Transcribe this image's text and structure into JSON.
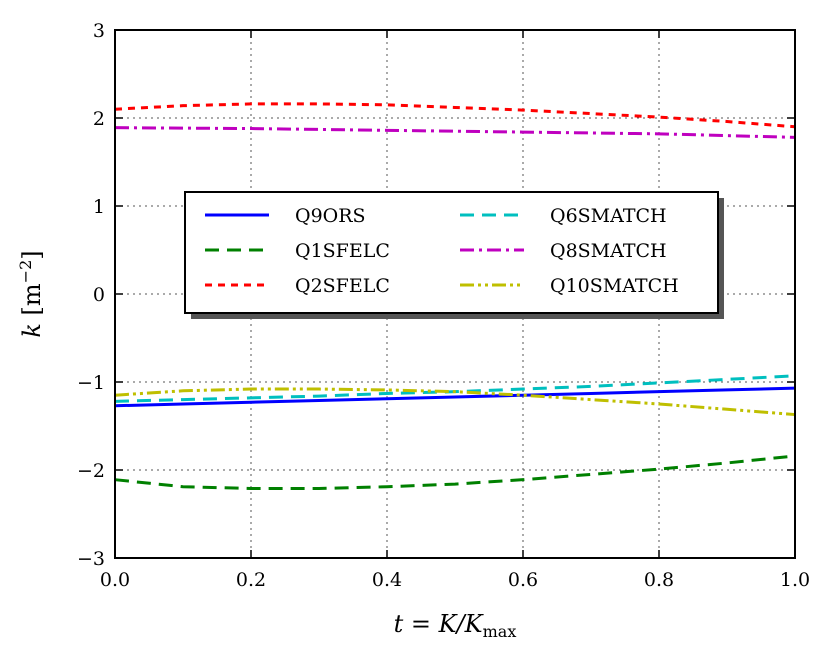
{
  "chart_data": {
    "type": "line",
    "title": "",
    "xlabel": "t = K/K_max",
    "xlabel_parts": {
      "lhs": "t = K/K",
      "sub": "max"
    },
    "ylabel": "k [m^-2]",
    "ylabel_parts": {
      "var": "k",
      "unit": "[m",
      "sup": "−2",
      "close": "]"
    },
    "xlim": [
      0,
      1
    ],
    "ylim": [
      -3,
      3
    ],
    "xticks": [
      0.0,
      0.2,
      0.4,
      0.6,
      0.8,
      1.0
    ],
    "xtick_labels": [
      "0.0",
      "0.2",
      "0.4",
      "0.6",
      "0.8",
      "1.0"
    ],
    "yticks": [
      -3,
      -2,
      -1,
      0,
      1,
      2,
      3
    ],
    "ytick_labels": [
      "−3",
      "−2",
      "−1",
      "0",
      "1",
      "2",
      "3"
    ],
    "grid": true,
    "legend_placement": "center-left",
    "x": [
      0,
      0.1,
      0.2,
      0.3,
      0.4,
      0.5,
      0.6,
      0.7,
      0.8,
      0.9,
      1.0
    ],
    "series": [
      {
        "name": "Q9ORS",
        "color": "#0000ff",
        "dash": "solid",
        "values": [
          -1.27,
          -1.25,
          -1.23,
          -1.21,
          -1.19,
          -1.17,
          -1.15,
          -1.13,
          -1.11,
          -1.09,
          -1.07
        ]
      },
      {
        "name": "Q1SFELC",
        "color": "#008000",
        "dash": "dashed",
        "values": [
          -2.11,
          -2.19,
          -2.21,
          -2.21,
          -2.19,
          -2.16,
          -2.11,
          -2.05,
          -1.99,
          -1.92,
          -1.84
        ]
      },
      {
        "name": "Q2SFELC",
        "color": "#ff0000",
        "dash": "dotted",
        "values": [
          2.1,
          2.14,
          2.16,
          2.16,
          2.15,
          2.12,
          2.09,
          2.05,
          2.01,
          1.96,
          1.9
        ]
      },
      {
        "name": "Q6SMATCH",
        "color": "#00bfbf",
        "dash": "dashed",
        "values": [
          -1.22,
          -1.2,
          -1.18,
          -1.16,
          -1.13,
          -1.11,
          -1.08,
          -1.05,
          -1.01,
          -0.97,
          -0.93
        ]
      },
      {
        "name": "Q8SMATCH",
        "color": "#bf00bf",
        "dash": "dashdot",
        "values": [
          1.89,
          1.885,
          1.88,
          1.87,
          1.86,
          1.85,
          1.84,
          1.83,
          1.82,
          1.8,
          1.78
        ]
      },
      {
        "name": "Q10SMATCH",
        "color": "#bfbf00",
        "dash": "dashdotdot",
        "values": [
          -1.15,
          -1.1,
          -1.08,
          -1.08,
          -1.09,
          -1.11,
          -1.15,
          -1.2,
          -1.25,
          -1.31,
          -1.37
        ]
      }
    ]
  }
}
